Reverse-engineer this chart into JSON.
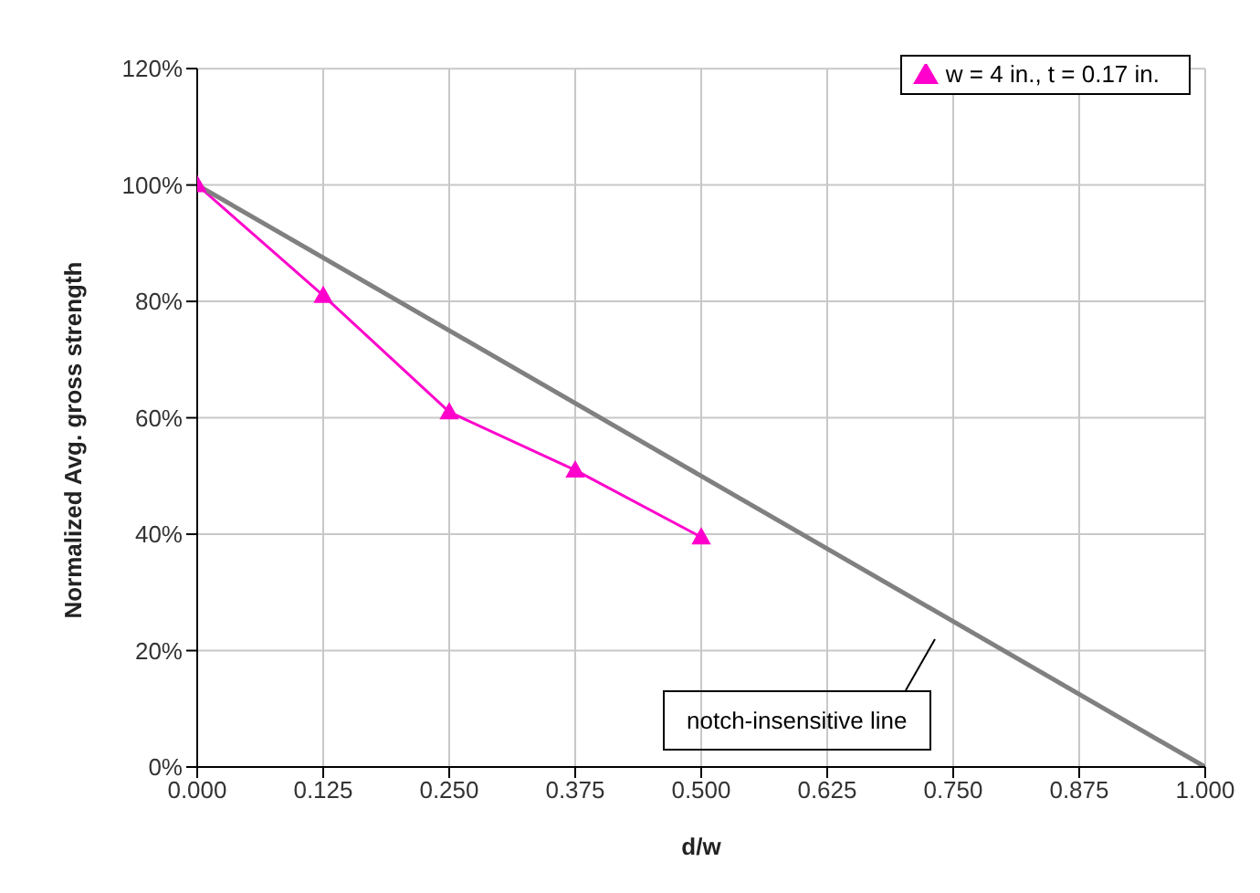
{
  "chart_data": {
    "type": "line",
    "xlabel": "d/w",
    "ylabel": "Normalized Avg. gross strength",
    "xlim": [
      0,
      1
    ],
    "xticks": [
      {
        "value": 0,
        "label": "0.000"
      },
      {
        "value": 0.125,
        "label": "0.125"
      },
      {
        "value": 0.25,
        "label": "0.250"
      },
      {
        "value": 0.375,
        "label": "0.375"
      },
      {
        "value": 0.5,
        "label": "0.500"
      },
      {
        "value": 0.625,
        "label": "0.625"
      },
      {
        "value": 0.75,
        "label": "0.750"
      },
      {
        "value": 0.875,
        "label": "0.875"
      },
      {
        "value": 1,
        "label": "1.000"
      }
    ],
    "ylim": [
      0,
      120
    ],
    "yticks": [
      {
        "value": 0,
        "label": "0%"
      },
      {
        "value": 20,
        "label": "20%"
      },
      {
        "value": 40,
        "label": "40%"
      },
      {
        "value": 60,
        "label": "60%"
      },
      {
        "value": 80,
        "label": "80%"
      },
      {
        "value": 100,
        "label": "100%"
      },
      {
        "value": 120,
        "label": "120%"
      }
    ],
    "grid": true,
    "legend": "top right",
    "series": [
      {
        "name": "w = 4 in., t = 0.17 in.",
        "color": "#ff00cc",
        "marker": "triangle",
        "x": [
          0,
          0.125,
          0.25,
          0.375,
          0.5
        ],
        "values": [
          100,
          81,
          61,
          51,
          39.5
        ]
      },
      {
        "color": "#808080",
        "marker": "none",
        "x": [
          0,
          1
        ],
        "values": [
          100,
          0
        ]
      }
    ],
    "annotations": [
      "notch-insensitive line"
    ]
  }
}
